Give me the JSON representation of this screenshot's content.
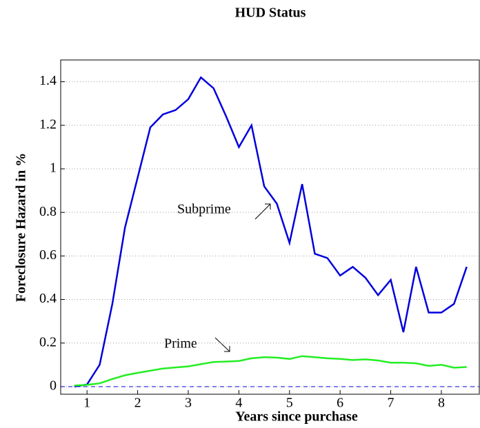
{
  "chart_data": {
    "type": "line",
    "title": "HUD Status",
    "x_label": "Years since purchase",
    "y_label": "Foreclosure Hazard in %",
    "x": [
      0.75,
      1,
      1.25,
      1.5,
      1.75,
      2,
      2.25,
      2.5,
      2.75,
      3,
      3.25,
      3.5,
      3.75,
      4,
      4.25,
      4.5,
      4.75,
      5,
      5.25,
      5.5,
      5.75,
      6,
      6.25,
      6.5,
      6.75,
      7,
      7.25,
      7.5,
      7.75,
      8,
      8.25,
      8.5
    ],
    "series": [
      {
        "name": "Subprime",
        "color": "#0000dd",
        "values": [
          0,
          0.01,
          0.1,
          0.38,
          0.73,
          0.96,
          1.19,
          1.25,
          1.27,
          1.32,
          1.42,
          1.37,
          1.24,
          1.1,
          1.2,
          0.92,
          0.84,
          0.66,
          0.93,
          0.61,
          0.59,
          0.51,
          0.55,
          0.5,
          0.42,
          0.49,
          0.25,
          0.55,
          0.34,
          0.34,
          0.38,
          0.55
        ]
      },
      {
        "name": "Prime",
        "color": "#22ee22",
        "values": [
          0.005,
          0.008,
          0.015,
          0.035,
          0.052,
          0.063,
          0.073,
          0.083,
          0.088,
          0.093,
          0.103,
          0.113,
          0.115,
          0.118,
          0.13,
          0.135,
          0.133,
          0.127,
          0.14,
          0.135,
          0.13,
          0.127,
          0.122,
          0.125,
          0.12,
          0.11,
          0.11,
          0.107,
          0.095,
          0.1,
          0.087,
          0.09
        ]
      }
    ],
    "xlim": [
      0.48,
      8.75
    ],
    "ylim": [
      -0.035,
      1.5
    ],
    "xticks": [
      1,
      2,
      3,
      4,
      5,
      6,
      7,
      8
    ],
    "yticks": [
      0,
      0.2,
      0.4,
      0.6,
      0.8,
      1,
      1.2,
      1.4
    ],
    "grid": true,
    "zero_line": 0
  }
}
